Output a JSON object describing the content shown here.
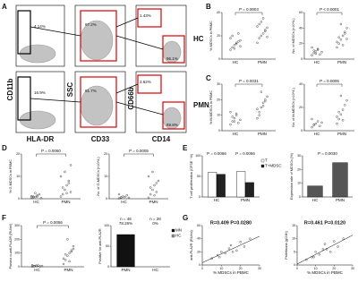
{
  "panel_labels": [
    "A",
    "B",
    "C",
    "D",
    "E",
    "F",
    "G"
  ],
  "flow": {
    "row_labels": [
      "HC",
      "PMN"
    ],
    "axes": [
      "CD11b",
      "HLA-DR",
      "SSC",
      "CD33",
      "CD66b",
      "CD14"
    ],
    "gates": [
      [
        "4.14%",
        "97.2%",
        "1.43%",
        "96.1%"
      ],
      [
        "16.9%",
        "91.7%",
        "3.62%",
        "89.8%"
      ]
    ]
  },
  "chart_data": [
    {
      "type": "dot",
      "ylabel": "% MDSCs in PBMC",
      "p": "P = 0.0003",
      "ylim": [
        0,
        40
      ],
      "yticks": [
        0,
        20,
        40
      ],
      "groups": [
        {
          "name": "HC",
          "values": [
            8,
            10,
            12,
            14,
            15,
            16,
            18,
            20,
            9,
            13,
            22,
            11
          ]
        },
        {
          "name": "PMN",
          "values": [
            14,
            18,
            20,
            22,
            25,
            27,
            28,
            30,
            32,
            35,
            24,
            19
          ]
        }
      ]
    },
    {
      "type": "dot",
      "ylabel": "No. of MDSCs (×10⁴/L)",
      "p": "P < 0.0001",
      "ylim": [
        0,
        60
      ],
      "yticks": [
        0,
        20,
        40,
        60
      ],
      "groups": [
        {
          "name": "HC",
          "values": [
            5,
            8,
            10,
            12,
            6,
            9,
            15,
            11,
            7,
            13
          ]
        },
        {
          "name": "PMN",
          "values": [
            15,
            20,
            25,
            30,
            35,
            40,
            22,
            28,
            45,
            18,
            33,
            26
          ]
        }
      ]
    },
    {
      "type": "dot",
      "ylabel": "% M-MDSCs in PBMC",
      "p": "P = 0.0031",
      "ylim": [
        0,
        30
      ],
      "yticks": [
        0,
        10,
        20,
        30
      ],
      "groups": [
        {
          "name": "HC",
          "values": [
            4,
            6,
            8,
            10,
            5,
            7,
            12,
            9,
            6,
            11
          ]
        },
        {
          "name": "PMN",
          "values": [
            8,
            12,
            15,
            18,
            20,
            22,
            14,
            10,
            25,
            16,
            19
          ]
        }
      ]
    },
    {
      "type": "dot",
      "ylabel": "No. of M-MDSCs (×10⁴/L)",
      "p": "P = 0.0006",
      "ylim": [
        0,
        40
      ],
      "yticks": [
        0,
        20,
        40
      ],
      "groups": [
        {
          "name": "HC",
          "values": [
            3,
            5,
            6,
            8,
            4,
            7,
            10,
            5
          ]
        },
        {
          "name": "PMN",
          "values": [
            6,
            10,
            14,
            18,
            22,
            26,
            12,
            16,
            30,
            9
          ]
        }
      ]
    },
    {
      "type": "dot",
      "ylabel": "% G-MDSCs in PBMC",
      "p": "P = 0.0060",
      "ylim": [
        0,
        20
      ],
      "yticks": [
        0,
        10,
        20
      ],
      "groups": [
        {
          "name": "HC",
          "values": [
            0.5,
            1,
            0.8,
            1.5,
            2,
            0.3,
            1.2,
            0.6,
            2.5,
            1
          ]
        },
        {
          "name": "PMN",
          "values": [
            1,
            2,
            4,
            6,
            8,
            3,
            10,
            5,
            12,
            2.5,
            7,
            15
          ]
        }
      ]
    },
    {
      "type": "dot",
      "ylabel": "No. of G-MDSCs (×10⁴/L)",
      "p": "P = 0.0005",
      "ylim": [
        0,
        20
      ],
      "yticks": [
        0,
        10,
        20
      ],
      "groups": [
        {
          "name": "HC",
          "values": [
            0.2,
            0.5,
            1,
            0.8,
            1.5,
            0.4,
            2,
            0.6
          ]
        },
        {
          "name": "PMN",
          "values": [
            0.5,
            2,
            4,
            6,
            3,
            8,
            10,
            5,
            12,
            1.5,
            7
          ]
        }
      ]
    },
    {
      "type": "bar",
      "ylabel": "T cell proliferation (CFSE⁻ %)",
      "annotations": [
        "P = 0.0066",
        "P = 0.0056"
      ],
      "ylim": [
        0,
        100
      ],
      "yticks": [
        0,
        50,
        100
      ],
      "categories": [
        "HC",
        "PMN"
      ],
      "series": [
        {
          "name": "T",
          "color": "#ffffff",
          "values": [
            60,
            62
          ]
        },
        {
          "name": "T+MDSC",
          "color": "#222222",
          "values": [
            55,
            35
          ]
        }
      ]
    },
    {
      "type": "bar",
      "ylabel": "Expression rate of MDSCs (%)",
      "annotations": [
        "P = 0.0030"
      ],
      "ylim": [
        0,
        30
      ],
      "yticks": [
        0,
        10,
        20,
        30
      ],
      "categories": [
        "HC",
        "PMN"
      ],
      "series": [
        {
          "color": "#555555",
          "values": [
            8,
            25
          ]
        }
      ]
    },
    {
      "type": "dot",
      "ylabel": "Plasma α-anti-PLA2R (RU/ml)",
      "p": "P = 0.0056",
      "ylim": [
        0,
        300
      ],
      "yticks": [
        0,
        100,
        200,
        300
      ],
      "groups": [
        {
          "name": "HC",
          "values": [
            2,
            5,
            8,
            10,
            3,
            6,
            12,
            4,
            7
          ]
        },
        {
          "name": "PMN",
          "values": [
            20,
            50,
            80,
            100,
            120,
            150,
            60,
            90,
            200,
            40,
            110,
            130
          ]
        }
      ]
    },
    {
      "type": "bar",
      "ylabel": "Positive for anti-PLA2R",
      "annotations": [
        "n = 46",
        "n = 28"
      ],
      "ylim": [
        0,
        100
      ],
      "yticks": [
        0,
        50,
        100
      ],
      "categories": [
        "PMN",
        "HC"
      ],
      "series": [
        {
          "name": "MN",
          "color": "#111111",
          "values": [
            78.26,
            0
          ],
          "value_labels": [
            "78.26%",
            "0%"
          ]
        }
      ],
      "legend": [
        {
          "name": "MN",
          "color": "#111111"
        },
        {
          "name": "HC",
          "color": "#999999"
        }
      ]
    },
    {
      "type": "scatter",
      "annotation": "R=0.409  P=0.0280",
      "xlabel": "% MDSCs in PBMC",
      "ylabel": "anti-PLA2R (RU/ml)",
      "xlim": [
        0,
        30
      ],
      "xticks": [
        0,
        10,
        20,
        30
      ],
      "ylim": [
        0,
        60
      ],
      "yticks": [
        0,
        20,
        40,
        60
      ],
      "x": [
        5,
        8,
        10,
        12,
        14,
        15,
        18,
        20,
        22,
        25,
        9,
        16
      ],
      "y": [
        10,
        15,
        20,
        18,
        25,
        30,
        22,
        35,
        28,
        40,
        12,
        20
      ]
    },
    {
      "type": "scatter",
      "annotation": "R=0.461  P=0.0120",
      "xlabel": "% MDSCs in PBMC",
      "ylabel": "Proteinuria (g/24h)",
      "xlim": [
        0,
        30
      ],
      "xticks": [
        0,
        10,
        20,
        30
      ],
      "ylim": [
        0,
        15
      ],
      "yticks": [
        0,
        5,
        10,
        15
      ],
      "x": [
        5,
        8,
        10,
        12,
        14,
        15,
        18,
        20,
        22,
        25,
        9,
        16
      ],
      "y": [
        2,
        3,
        5,
        4,
        6,
        8,
        5,
        9,
        7,
        10,
        3,
        6
      ]
    }
  ]
}
